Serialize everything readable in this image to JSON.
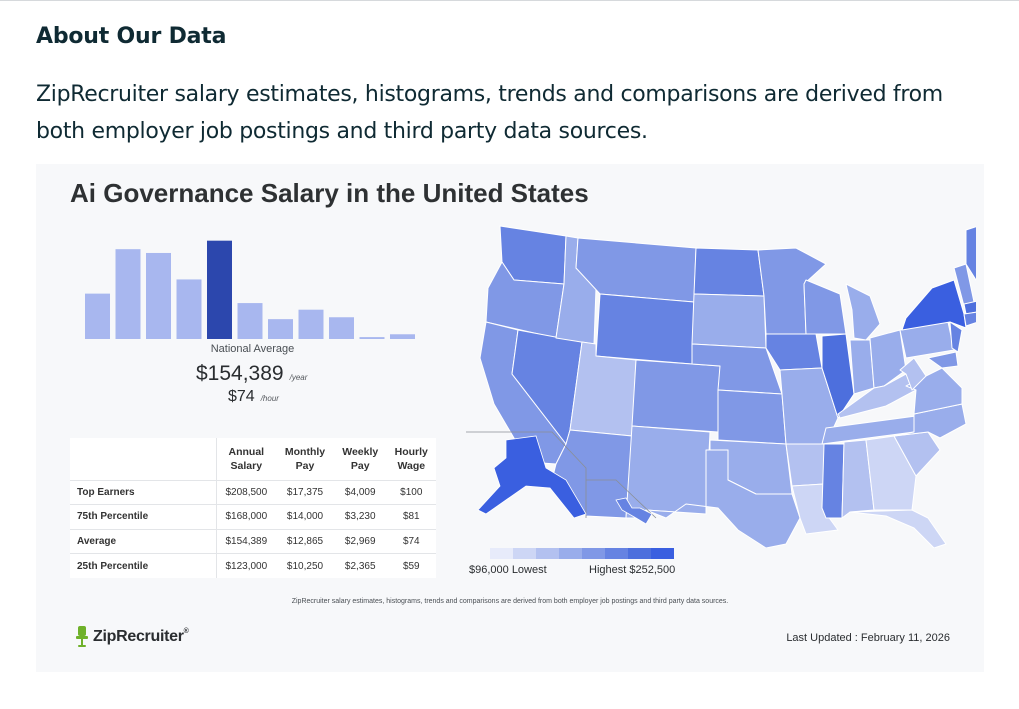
{
  "section": {
    "heading": "About Our Data",
    "paragraph": "ZipRecruiter salary estimates, histograms, trends and comparisons are derived from both employer job postings and third party data sources."
  },
  "card": {
    "title": "Ai Governance Salary in the United States",
    "national_label": "National Average",
    "annual_amount": "$154,389",
    "annual_unit": "/year",
    "hourly_amount": "$74",
    "hourly_unit": "/hour",
    "footnote": "ZipRecruiter salary estimates, histograms, trends and comparisons are derived from both employer job postings and third party data sources.",
    "brand": "ZipRecruiter",
    "brand_mark": "®",
    "last_updated": "Last Updated : February 11, 2026"
  },
  "table": {
    "headers": [
      [
        "Annual",
        "Salary"
      ],
      [
        "Monthly",
        "Pay"
      ],
      [
        "Weekly",
        "Pay"
      ],
      [
        "Hourly",
        "Wage"
      ]
    ],
    "rows": [
      {
        "label": "Top Earners",
        "values": [
          "$208,500",
          "$17,375",
          "$4,009",
          "$100"
        ]
      },
      {
        "label": "75th Percentile",
        "values": [
          "$168,000",
          "$14,000",
          "$3,230",
          "$81"
        ]
      },
      {
        "label": "Average",
        "values": [
          "$154,389",
          "$12,865",
          "$2,969",
          "$74"
        ]
      },
      {
        "label": "25th Percentile",
        "values": [
          "$123,000",
          "$10,250",
          "$2,365",
          "$59"
        ]
      }
    ]
  },
  "legend": {
    "low_label": "$96,000 Lowest",
    "high_label": "Highest $252,500",
    "colors": [
      "#e7ebfa",
      "#cdd6f5",
      "#b3c1f0",
      "#99adeb",
      "#8098e6",
      "#6683e2",
      "#4d6fdd",
      "#3a5fe0"
    ]
  },
  "chart_data": {
    "type": "bar",
    "title": "Ai Governance Salary in the United States",
    "categories": [
      "1",
      "2",
      "3",
      "4",
      "5",
      "6",
      "7",
      "8",
      "9",
      "10",
      "11"
    ],
    "values": [
      48,
      95,
      91,
      63,
      104,
      38,
      21,
      31,
      23,
      2,
      5
    ],
    "highlight_index": 4,
    "ylim": [
      0,
      110
    ],
    "xlabel": "",
    "ylabel": ""
  },
  "colors": {
    "bar": "#a8b7ef",
    "bar_highlight": "#2c47ad",
    "accent": "#6fb12a"
  }
}
